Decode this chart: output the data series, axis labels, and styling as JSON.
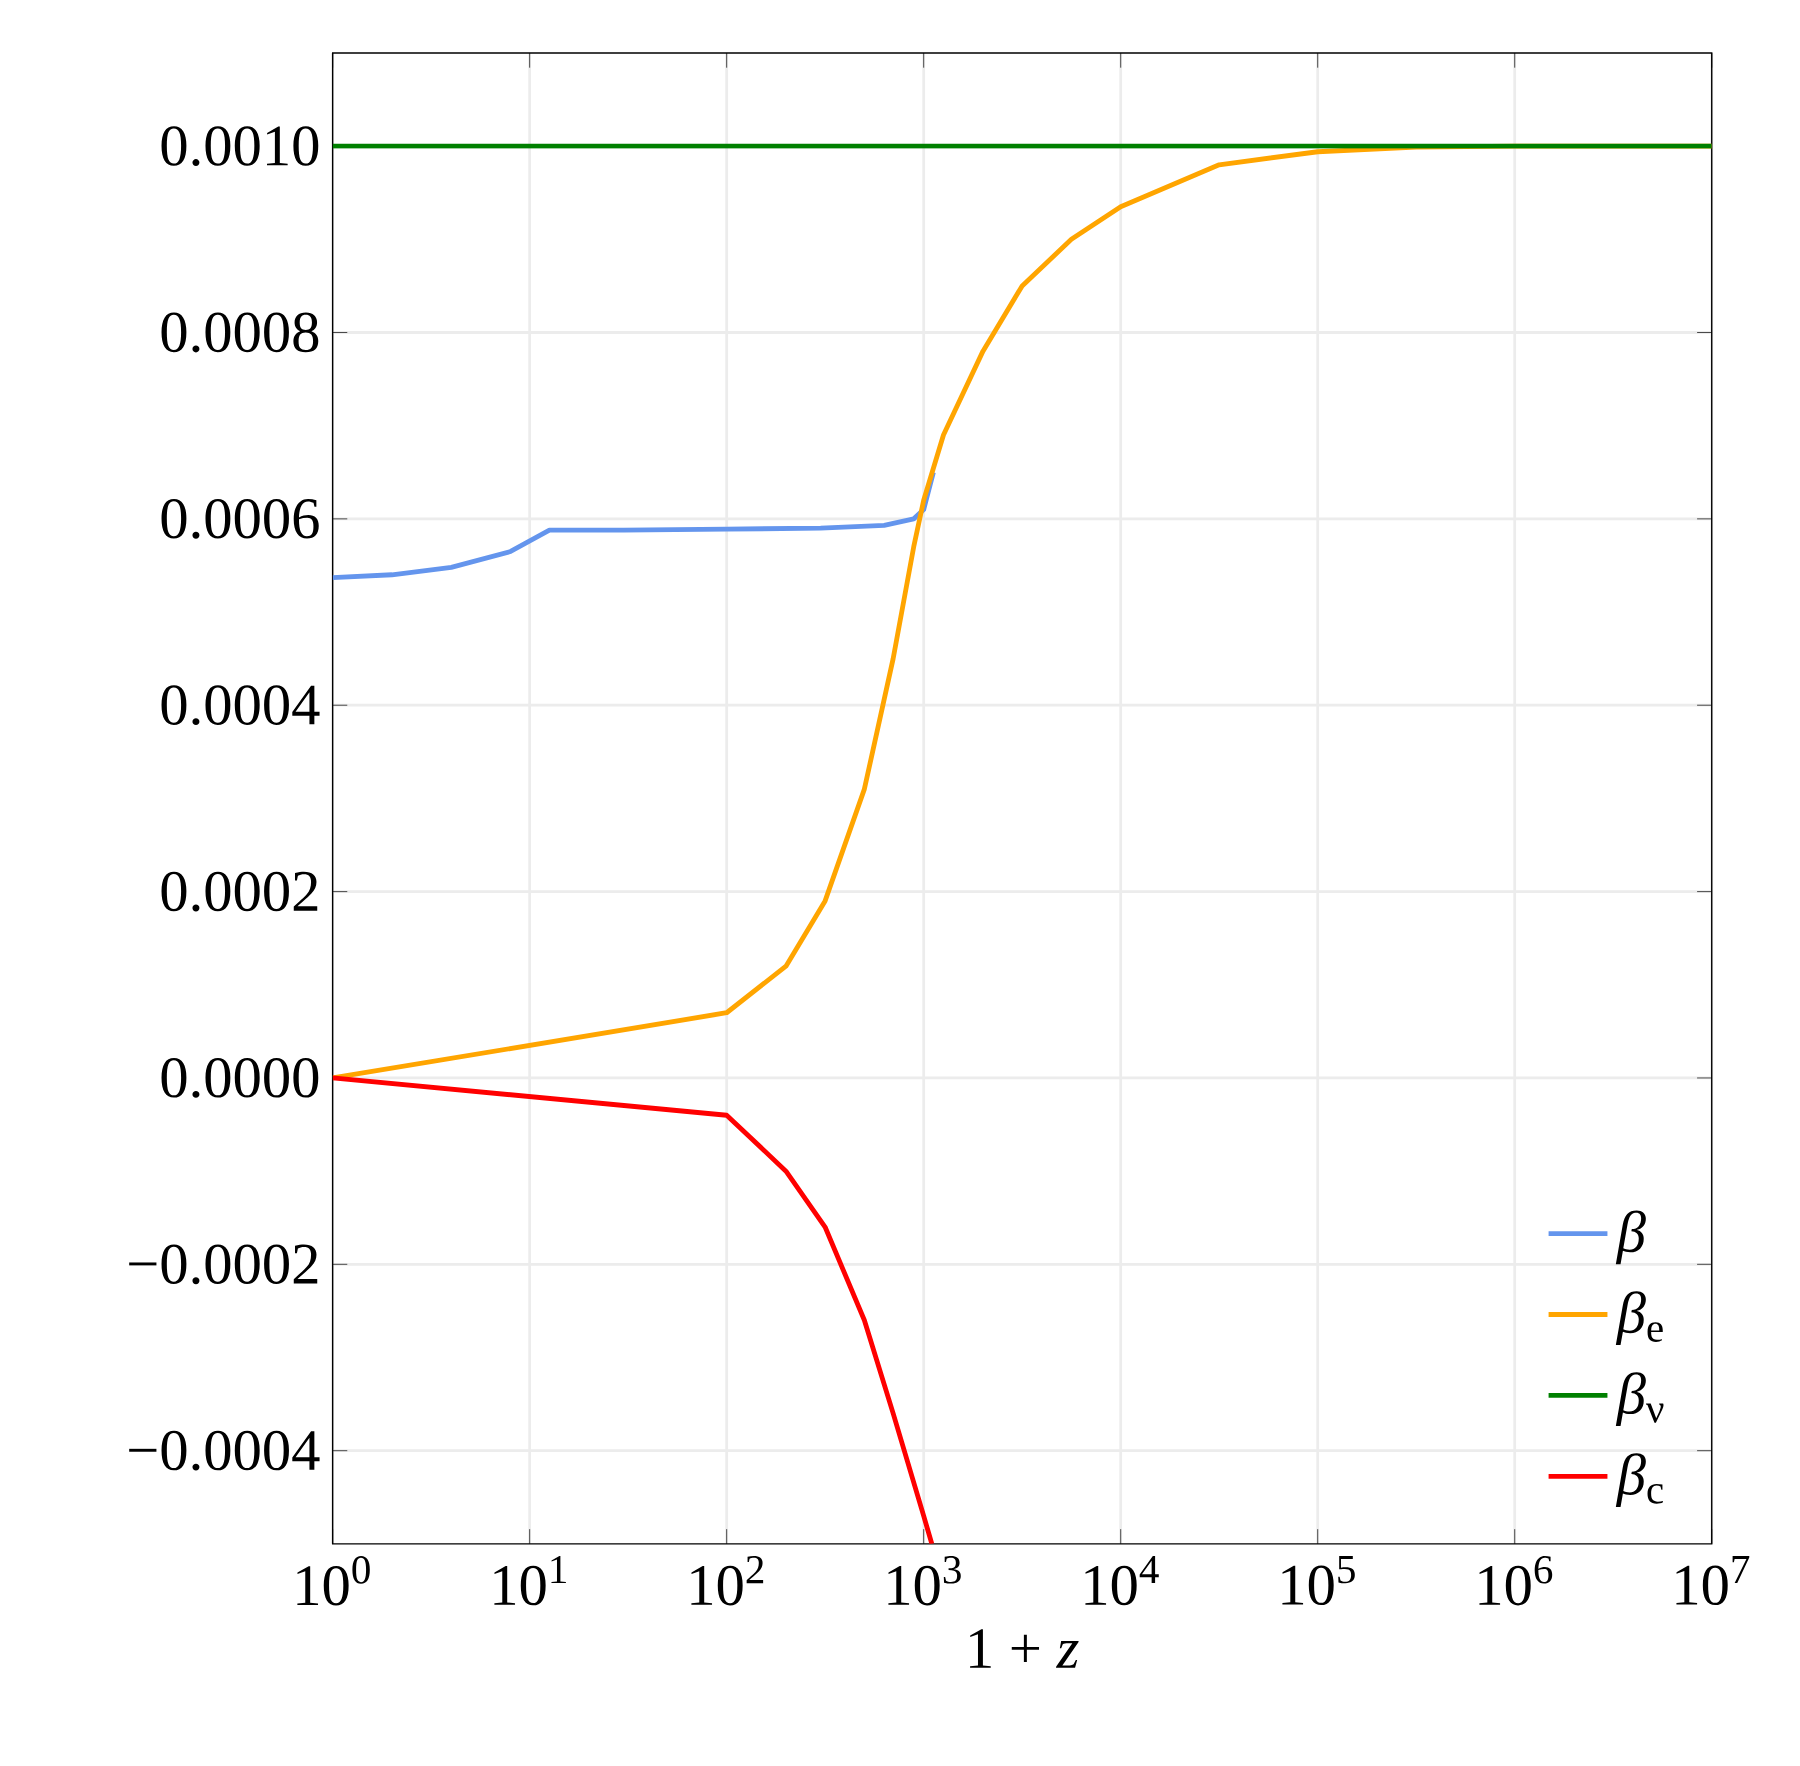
{
  "chart_data": {
    "type": "line",
    "xlabel": "1 + *z*",
    "log": "x",
    "grid": true,
    "legend": "bottom right",
    "marker": "none",
    "line_style": "solid",
    "xlim": [
      1,
      10000000
    ],
    "ylim": [
      -0.0005,
      0.0011
    ],
    "xticks": [
      {
        "value": 1,
        "label": "10$^{0}$"
      },
      {
        "value": 10,
        "label": "10$^{1}$"
      },
      {
        "value": 100,
        "label": "10$^{2}$"
      },
      {
        "value": 1000,
        "label": "10$^{3}$"
      },
      {
        "value": 10000,
        "label": "10$^{4}$"
      },
      {
        "value": 100000,
        "label": "10$^{5}$"
      },
      {
        "value": 1000000,
        "label": "10$^{6}$"
      },
      {
        "value": 10000000,
        "label": "10$^{7}$"
      }
    ],
    "yticks": [
      {
        "value": -0.0004,
        "label": "−0.0004"
      },
      {
        "value": -0.0002,
        "label": "−0.0002"
      },
      {
        "value": 0,
        "label": "0.0000"
      },
      {
        "value": 0.0002,
        "label": "0.0002"
      },
      {
        "value": 0.0004,
        "label": "0.0004"
      },
      {
        "value": 0.0006,
        "label": "0.0006"
      },
      {
        "value": 0.0008,
        "label": "0.0008"
      },
      {
        "value": 0.001,
        "label": "0.0010"
      }
    ],
    "series": [
      {
        "name": "*β*",
        "color": "#6495ed",
        "x": [
          1,
          2,
          4,
          8,
          12.6,
          30,
          100,
          300,
          630,
          890,
          1000,
          1120
        ],
        "values": [
          0.000537,
          0.00054,
          0.000548,
          0.000565,
          0.000588,
          0.000588,
          0.000589,
          0.00059,
          0.000593,
          0.0006,
          0.00061,
          0.00065
        ]
      },
      {
        "name": "*β*$_{e}$",
        "color": "#ffa500",
        "x": [
          1,
          100,
          200,
          316,
          500,
          700,
          890,
          1000,
          1260,
          2000,
          3160,
          5620,
          10000,
          31600,
          100000,
          316000,
          1000000,
          10000000
        ],
        "values": [
          0,
          7e-05,
          0.00012,
          0.00019,
          0.00031,
          0.00045,
          0.00057,
          0.00062,
          0.00069,
          0.00078,
          0.00085,
          0.0009,
          0.000935,
          0.00098,
          0.000994,
          0.000999,
          0.001,
          0.001
        ]
      },
      {
        "name": "*β*$_{ν}$",
        "color": "#008000",
        "x": [
          1,
          10000000
        ],
        "values": [
          0.001,
          0.001
        ]
      },
      {
        "name": "*β*$_{c}$",
        "color": "#ff0000",
        "x": [
          1,
          100,
          200,
          316,
          500,
          700,
          1000,
          1100
        ],
        "values": [
          0,
          -4e-05,
          -0.0001,
          -0.00016,
          -0.00026,
          -0.00036,
          -0.00047,
          -0.0005
        ]
      }
    ]
  }
}
